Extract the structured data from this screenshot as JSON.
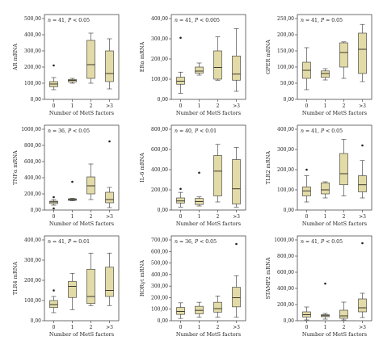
{
  "chart_data": [
    {
      "type": "box",
      "annotation": "n = 41, P < 0.05",
      "ylabel": "AR mRNA",
      "xlabel": "Number of MetS factors",
      "categories": [
        "0",
        "1",
        "2",
        ">3"
      ],
      "ylim": [
        0,
        500
      ],
      "yticks": [
        "0,00",
        "100,00",
        "200,00",
        "300,00",
        "400,00",
        "500,00"
      ],
      "ytick_values": [
        0,
        100,
        200,
        300,
        400,
        500
      ],
      "boxes": [
        {
          "whislo": 60,
          "q1": 78,
          "med": 95,
          "q3": 110,
          "whishi": 135,
          "fliers": [
            210
          ]
        },
        {
          "whislo": 100,
          "q1": 108,
          "med": 118,
          "q3": 123,
          "whishi": 130,
          "fliers": []
        },
        {
          "whislo": 100,
          "q1": 130,
          "med": 215,
          "q3": 365,
          "whishi": 410,
          "fliers": []
        },
        {
          "whislo": 65,
          "q1": 110,
          "med": 160,
          "q3": 300,
          "whishi": 375,
          "fliers": []
        }
      ]
    },
    {
      "type": "box",
      "annotation": "n = 41, P < 0.005",
      "ylabel": "ERα mRNA",
      "xlabel": "Number of MetS factors",
      "categories": [
        "0",
        "1",
        "2",
        ">3"
      ],
      "ylim": [
        0,
        400
      ],
      "yticks": [
        "0,00",
        "100,00",
        "200,00",
        "300,00",
        "400,00"
      ],
      "ytick_values": [
        0,
        100,
        200,
        300,
        400
      ],
      "boxes": [
        {
          "whislo": 30,
          "q1": 75,
          "med": 90,
          "q3": 110,
          "whishi": 135,
          "fliers": [
            305
          ]
        },
        {
          "whislo": 120,
          "q1": 130,
          "med": 140,
          "q3": 160,
          "whishi": 180,
          "fliers": []
        },
        {
          "whislo": 95,
          "q1": 100,
          "med": 158,
          "q3": 240,
          "whishi": 310,
          "fliers": []
        },
        {
          "whislo": 40,
          "q1": 95,
          "med": 125,
          "q3": 215,
          "whishi": 350,
          "fliers": []
        }
      ]
    },
    {
      "type": "box",
      "annotation": "n = 41, P = 0.05",
      "ylabel": "GPER mRNA",
      "xlabel": "Number of MetS factors",
      "categories": [
        "0",
        "1",
        "2",
        ">3"
      ],
      "ylim": [
        0,
        250
      ],
      "yticks": [
        "0,00",
        "50,00",
        "100,00",
        "150,00",
        "200,00",
        "250,00"
      ],
      "ytick_values": [
        0,
        50,
        100,
        150,
        200,
        250
      ],
      "boxes": [
        {
          "whislo": 30,
          "q1": 65,
          "med": 90,
          "q3": 115,
          "whishi": 160,
          "fliers": []
        },
        {
          "whislo": 60,
          "q1": 68,
          "med": 80,
          "q3": 88,
          "whishi": 95,
          "fliers": []
        },
        {
          "whislo": 65,
          "q1": 100,
          "med": 145,
          "q3": 175,
          "whishi": 178,
          "fliers": []
        },
        {
          "whislo": 55,
          "q1": 80,
          "med": 155,
          "q3": 205,
          "whishi": 232,
          "fliers": []
        }
      ]
    },
    {
      "type": "box",
      "annotation": "n = 36, P < 0.05",
      "ylabel": "TNFα mRNA",
      "xlabel": "Number of MetS factors",
      "categories": [
        "0",
        "1",
        "2",
        ">3"
      ],
      "ylim": [
        0,
        1000
      ],
      "yticks": [
        "0,00",
        "200,00",
        "400,00",
        "600,00",
        "800,00",
        "1000,00"
      ],
      "ytick_values": [
        0,
        200,
        400,
        600,
        800,
        1000
      ],
      "boxes": [
        {
          "whislo": 60,
          "q1": 80,
          "med": 100,
          "q3": 110,
          "whishi": 130,
          "fliers": [
            20,
            160
          ]
        },
        {
          "whislo": 115,
          "q1": 120,
          "med": 130,
          "q3": 140,
          "whishi": 145,
          "fliers": [
            350
          ]
        },
        {
          "whislo": 130,
          "q1": 200,
          "med": 300,
          "q3": 410,
          "whishi": 570,
          "fliers": []
        },
        {
          "whislo": 30,
          "q1": 90,
          "med": 130,
          "q3": 220,
          "whishi": 280,
          "fliers": [
            850
          ]
        }
      ]
    },
    {
      "type": "box",
      "annotation": "n = 40, P < 0.01",
      "ylabel": "IL-6 mRNA",
      "xlabel": "Number of MetS factors",
      "categories": [
        "0",
        "1",
        "2",
        ">3"
      ],
      "ylim": [
        0,
        800
      ],
      "yticks": [
        "0,00",
        "200,00",
        "400,00",
        "600,00",
        "800,00"
      ],
      "ytick_values": [
        0,
        200,
        400,
        600,
        800
      ],
      "boxes": [
        {
          "whislo": 30,
          "q1": 70,
          "med": 90,
          "q3": 120,
          "whishi": 175,
          "fliers": [
            210
          ]
        },
        {
          "whislo": 40,
          "q1": 55,
          "med": 85,
          "q3": 115,
          "whishi": 130,
          "fliers": [
            370
          ]
        },
        {
          "whislo": 80,
          "q1": 140,
          "med": 385,
          "q3": 540,
          "whishi": 650,
          "fliers": []
        },
        {
          "whislo": 30,
          "q1": 60,
          "med": 210,
          "q3": 500,
          "whishi": 620,
          "fliers": []
        }
      ]
    },
    {
      "type": "box",
      "annotation": "n = 41, P < 0.05",
      "ylabel": "TLR2 mRNA",
      "xlabel": "Number of MetS factors",
      "categories": [
        "0",
        "1",
        "2",
        ">3"
      ],
      "ylim": [
        0,
        400
      ],
      "yticks": [
        "0,00",
        "100,00",
        "200,00",
        "300,00",
        "400,00"
      ],
      "ytick_values": [
        0,
        100,
        200,
        300,
        400
      ],
      "boxes": [
        {
          "whislo": 40,
          "q1": 70,
          "med": 95,
          "q3": 115,
          "whishi": 170,
          "fliers": [
            200
          ]
        },
        {
          "whislo": 60,
          "q1": 80,
          "med": 100,
          "q3": 135,
          "whishi": 140,
          "fliers": []
        },
        {
          "whislo": 70,
          "q1": 125,
          "med": 180,
          "q3": 280,
          "whishi": 350,
          "fliers": []
        },
        {
          "whislo": 60,
          "q1": 90,
          "med": 125,
          "q3": 170,
          "whishi": 245,
          "fliers": [
            320
          ]
        }
      ]
    },
    {
      "type": "box",
      "annotation": "n = 41, P = 0.01",
      "ylabel": "TLR4 mRNA",
      "xlabel": "Number of MetS factors",
      "categories": [
        "0",
        "1",
        "2",
        ">3"
      ],
      "ylim": [
        0,
        400
      ],
      "yticks": [
        "0,00",
        "100,00",
        "200,00",
        "300,00",
        "400,00"
      ],
      "ytick_values": [
        0,
        100,
        200,
        300,
        400
      ],
      "boxes": [
        {
          "whislo": 40,
          "q1": 65,
          "med": 80,
          "q3": 100,
          "whishi": 120,
          "fliers": [
            150
          ]
        },
        {
          "whislo": 55,
          "q1": 115,
          "med": 170,
          "q3": 195,
          "whishi": 235,
          "fliers": []
        },
        {
          "whislo": 75,
          "q1": 85,
          "med": 120,
          "q3": 255,
          "whishi": 335,
          "fliers": []
        },
        {
          "whislo": 75,
          "q1": 120,
          "med": 150,
          "q3": 265,
          "whishi": 335,
          "fliers": []
        }
      ]
    },
    {
      "type": "box",
      "annotation": "n = 36, P < 0.05",
      "ylabel": "RORγt mRNA",
      "xlabel": "Number of MetS factors",
      "categories": [
        "0",
        "1",
        "2",
        ">3"
      ],
      "ylim": [
        0,
        700
      ],
      "yticks": [
        "0,00",
        "100,00",
        "200,00",
        "300,00",
        "400,00",
        "500,00",
        "600,00",
        "700,00"
      ],
      "ytick_values": [
        0,
        100,
        200,
        300,
        400,
        500,
        600,
        700
      ],
      "boxes": [
        {
          "whislo": 20,
          "q1": 55,
          "med": 80,
          "q3": 115,
          "whishi": 155,
          "fliers": []
        },
        {
          "whislo": 30,
          "q1": 60,
          "med": 90,
          "q3": 125,
          "whishi": 160,
          "fliers": []
        },
        {
          "whislo": 30,
          "q1": 75,
          "med": 105,
          "q3": 160,
          "whishi": 215,
          "fliers": []
        },
        {
          "whislo": 30,
          "q1": 120,
          "med": 200,
          "q3": 290,
          "whishi": 390,
          "fliers": [
            665
          ]
        }
      ]
    },
    {
      "type": "box",
      "annotation": "n = 41, P < 0.05",
      "ylabel": "STAMP2 mRNA",
      "xlabel": "Number of MetS factors",
      "categories": [
        "0",
        "1",
        "2",
        ">3"
      ],
      "ylim": [
        0,
        1000
      ],
      "yticks": [
        "0,00",
        "200,00",
        "400,00",
        "600,00",
        "800,00",
        "1000,00"
      ],
      "ytick_values": [
        0,
        200,
        400,
        600,
        800,
        1000
      ],
      "boxes": [
        {
          "whislo": 10,
          "q1": 45,
          "med": 75,
          "q3": 110,
          "whishi": 170,
          "fliers": []
        },
        {
          "whislo": 20,
          "q1": 50,
          "med": 62,
          "q3": 75,
          "whishi": 90,
          "fliers": [
            460
          ]
        },
        {
          "whislo": 10,
          "q1": 30,
          "med": 60,
          "q3": 130,
          "whishi": 230,
          "fliers": []
        },
        {
          "whislo": 40,
          "q1": 110,
          "med": 160,
          "q3": 270,
          "whishi": 340,
          "fliers": [
            960
          ]
        }
      ]
    }
  ]
}
